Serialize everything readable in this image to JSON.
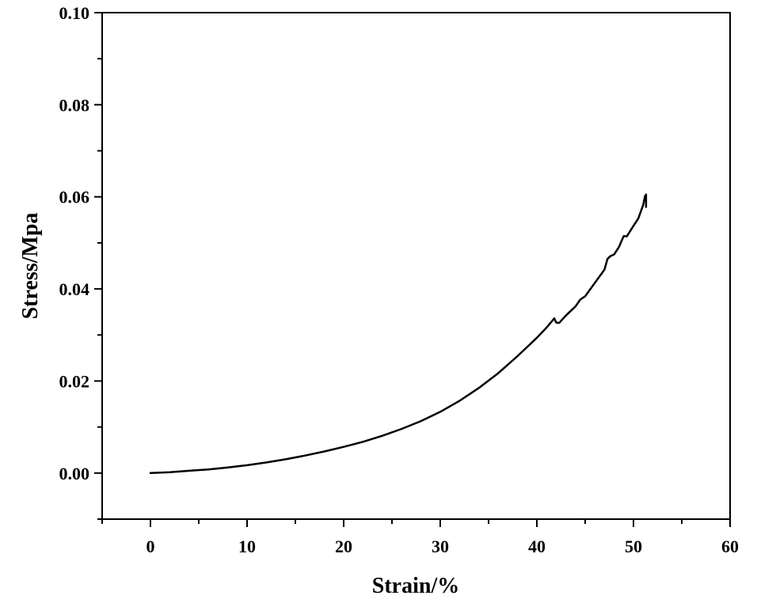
{
  "chart_data": {
    "type": "line",
    "title": "",
    "xlabel": "Strain/%",
    "ylabel": "Stress/Mpa",
    "xlim": [
      -5,
      60
    ],
    "ylim": [
      -0.01,
      0.1
    ],
    "grid": false,
    "x_ticks": [
      0,
      10,
      20,
      30,
      40,
      50,
      60
    ],
    "x_tick_labels": [
      "0",
      "10",
      "20",
      "30",
      "40",
      "50",
      "60"
    ],
    "y_ticks": [
      0.0,
      0.02,
      0.04,
      0.06,
      0.08,
      0.1
    ],
    "y_tick_labels": [
      "0.00",
      "0.02",
      "0.04",
      "0.06",
      "0.08",
      "0.10"
    ],
    "series": [
      {
        "color": "#000000",
        "x": [
          0,
          2,
          4,
          6,
          8,
          10,
          12,
          14,
          16,
          18,
          20,
          22,
          24,
          26,
          28,
          30,
          32,
          34,
          36,
          38,
          40,
          41,
          41.8,
          42.0,
          42.3,
          43,
          44,
          44.5,
          45,
          46,
          47,
          47.3,
          47.6,
          48,
          48.5,
          48.8,
          49.0,
          49.3,
          50,
          50.5,
          51,
          51.2,
          51.3,
          51.3
        ],
        "y": [
          0.0,
          0.0002,
          0.0005,
          0.0008,
          0.0012,
          0.0017,
          0.0023,
          0.003,
          0.0038,
          0.0047,
          0.0057,
          0.0068,
          0.0081,
          0.0096,
          0.0113,
          0.0133,
          0.0157,
          0.0185,
          0.0217,
          0.0254,
          0.0294,
          0.0316,
          0.0336,
          0.0327,
          0.0326,
          0.0342,
          0.0362,
          0.0377,
          0.0384,
          0.0413,
          0.0442,
          0.0465,
          0.0471,
          0.0475,
          0.0491,
          0.0506,
          0.0515,
          0.0514,
          0.0537,
          0.0553,
          0.0582,
          0.0602,
          0.0605,
          0.0578
        ]
      }
    ]
  }
}
